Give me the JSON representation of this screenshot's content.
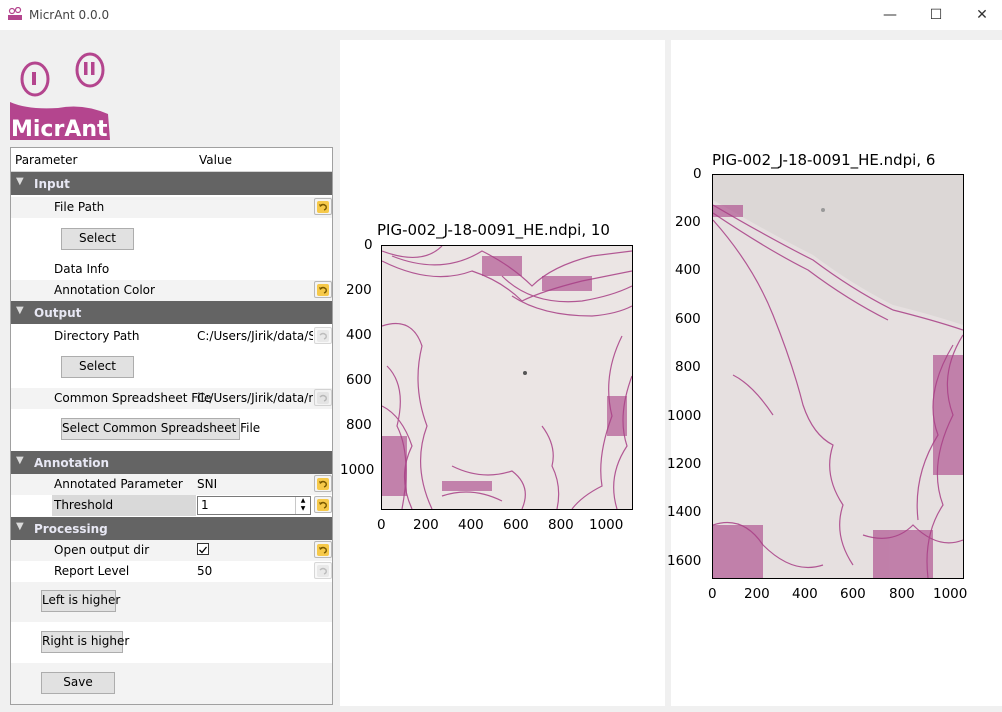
{
  "window": {
    "title": "MicrAnt 0.0.0",
    "controls": {
      "minimize": "—",
      "maximize": "☐",
      "close": "✕"
    }
  },
  "logo": {
    "text": "MicrAnt"
  },
  "tree": {
    "header": {
      "parameter": "Parameter",
      "value": "Value"
    },
    "input": {
      "label": "Input",
      "file_path": "File Path",
      "select": "Select",
      "data_info": "Data Info",
      "annotation_color": "Annotation Color"
    },
    "output": {
      "label": "Output",
      "directory_path": "Directory Path",
      "directory_value": "C:/Users/Jirik/data/SA",
      "select": "Select",
      "common_spreadsheet": "Common Spreadsheet File",
      "common_spreadsheet_value": "C:/Users/Jirik/data/mi",
      "select_common": "Select Common Spreadsheet File"
    },
    "annotation": {
      "label": "Annotation",
      "annotated_parameter": "Annotated Parameter",
      "annotated_parameter_value": "SNI",
      "threshold": "Threshold",
      "threshold_value": "1"
    },
    "processing": {
      "label": "Processing",
      "open_output_dir": "Open output dir",
      "open_output_dir_checked": true,
      "report_level": "Report Level",
      "report_level_value": "50"
    },
    "buttons": {
      "left_higher": "Left is higher",
      "right_higher": "Right is higher",
      "save": "Save"
    }
  },
  "plots": {
    "left": {
      "title": "PIG-002_J-18-0091_HE.ndpi, 10",
      "x_ticks": [
        "0",
        "200",
        "400",
        "600",
        "800",
        "1000"
      ],
      "y_ticks": [
        "0",
        "200",
        "400",
        "600",
        "800",
        "1000"
      ]
    },
    "right": {
      "title": "PIG-002_J-18-0091_HE.ndpi, 6",
      "x_ticks": [
        "0",
        "200",
        "400",
        "600",
        "800",
        "1000"
      ],
      "y_ticks": [
        "0",
        "200",
        "400",
        "600",
        "800",
        "1000",
        "1200",
        "1400",
        "1600"
      ]
    }
  },
  "colors": {
    "accent": "#b4458e",
    "section_bg": "#646464",
    "tissue": "#a83f86"
  }
}
